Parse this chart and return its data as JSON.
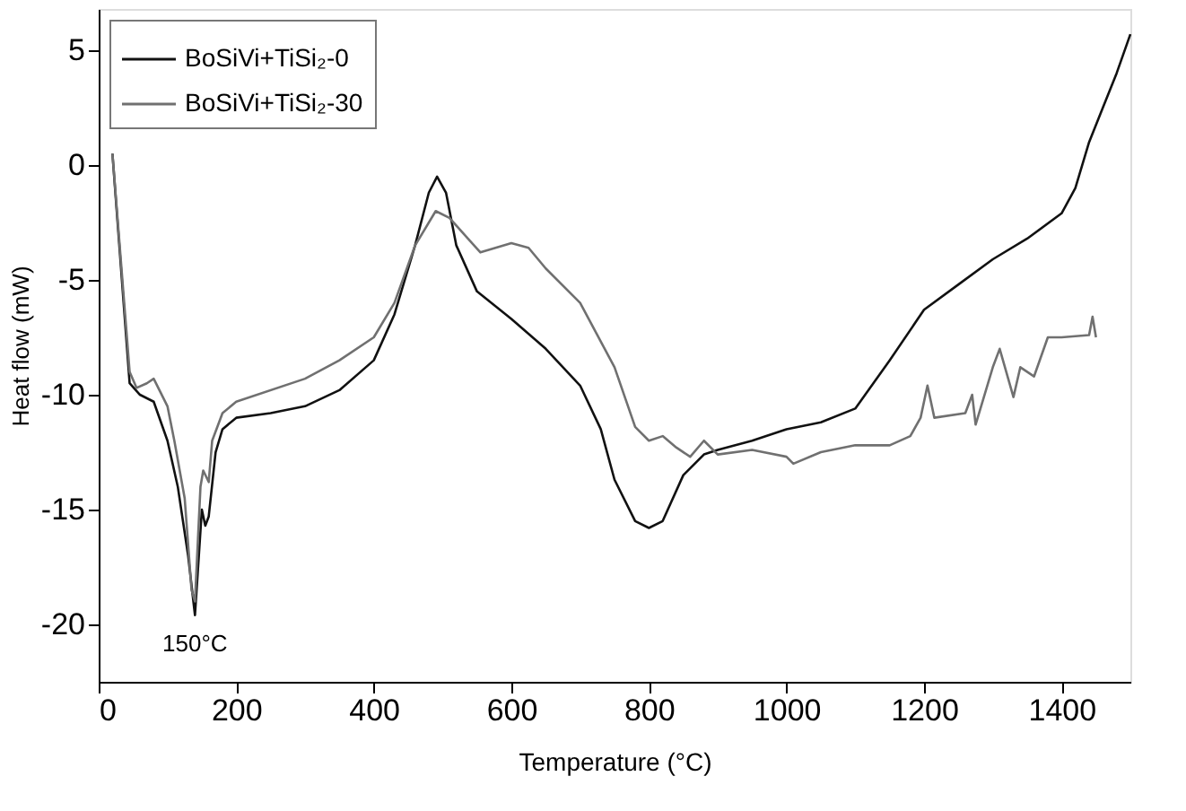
{
  "chart_data": {
    "type": "line",
    "xlabel": "Temperature (°C)",
    "ylabel": "Heat flow (mW)",
    "xlim": [
      0,
      1500
    ],
    "xticks": [
      0,
      200,
      400,
      600,
      800,
      1000,
      1200,
      1400
    ],
    "ylim": [
      -22.5,
      6.8
    ],
    "yticks": [
      -20,
      -15,
      -10,
      -5,
      0,
      5
    ],
    "grid": false,
    "legend": "top left",
    "marker": "none",
    "line_style": "solid",
    "annotations": [
      {
        "text": "150°C",
        "x": 140,
        "y": -19.6
      }
    ],
    "series": [
      {
        "name": "BoSiVi+TiSi₂-0",
        "color": "#111111",
        "x": [
          20,
          45,
          60,
          80,
          100,
          115,
          130,
          140,
          150,
          155,
          160,
          170,
          180,
          200,
          250,
          300,
          350,
          400,
          430,
          460,
          480,
          492,
          505,
          520,
          550,
          600,
          650,
          700,
          730,
          750,
          780,
          800,
          820,
          850,
          880,
          900,
          950,
          1000,
          1050,
          1100,
          1150,
          1200,
          1250,
          1300,
          1350,
          1400,
          1420,
          1440,
          1460,
          1480,
          1500
        ],
        "values": [
          0.5,
          -9.5,
          -10,
          -10.3,
          -12,
          -14,
          -17,
          -19.6,
          -15,
          -15.7,
          -15.3,
          -12.5,
          -11.5,
          -11,
          -10.8,
          -10.5,
          -9.8,
          -8.5,
          -6.5,
          -3.5,
          -1.2,
          -0.5,
          -1.2,
          -3.5,
          -5.5,
          -6.7,
          -8,
          -9.6,
          -11.5,
          -13.7,
          -15.5,
          -15.8,
          -15.5,
          -13.5,
          -12.6,
          -12.4,
          -12,
          -11.5,
          -11.2,
          -10.6,
          -8.5,
          -6.3,
          -5.2,
          -4.1,
          -3.2,
          -2.1,
          -1,
          1,
          2.5,
          4,
          5.7
        ]
      },
      {
        "name": "BoSiVi+TiSi₂-30",
        "color": "#707070",
        "x": [
          20,
          45,
          55,
          70,
          80,
          100,
          110,
          125,
          135,
          140,
          148,
          152,
          160,
          165,
          180,
          200,
          300,
          350,
          400,
          430,
          460,
          490,
          510,
          540,
          555,
          600,
          625,
          650,
          700,
          750,
          780,
          800,
          820,
          840,
          860,
          880,
          900,
          950,
          1000,
          1010,
          1050,
          1100,
          1150,
          1180,
          1195,
          1205,
          1215,
          1260,
          1270,
          1275,
          1300,
          1310,
          1330,
          1340,
          1360,
          1380,
          1400,
          1440,
          1445,
          1450
        ],
        "values": [
          0.5,
          -9,
          -9.7,
          -9.5,
          -9.3,
          -10.5,
          -12,
          -14.5,
          -18.5,
          -19,
          -14,
          -13.3,
          -13.8,
          -12,
          -10.8,
          -10.3,
          -9.3,
          -8.5,
          -7.5,
          -6,
          -3.5,
          -2,
          -2.3,
          -3.3,
          -3.8,
          -3.4,
          -3.6,
          -4.5,
          -6,
          -8.8,
          -11.4,
          -12,
          -11.8,
          -12.3,
          -12.7,
          -12,
          -12.6,
          -12.4,
          -12.7,
          -13,
          -12.5,
          -12.2,
          -12.2,
          -11.8,
          -11,
          -9.6,
          -11,
          -10.8,
          -10,
          -11.3,
          -8.8,
          -8,
          -10.1,
          -8.8,
          -9.2,
          -7.5,
          -7.5,
          -7.4,
          -6.6,
          -7.5
        ]
      }
    ]
  }
}
